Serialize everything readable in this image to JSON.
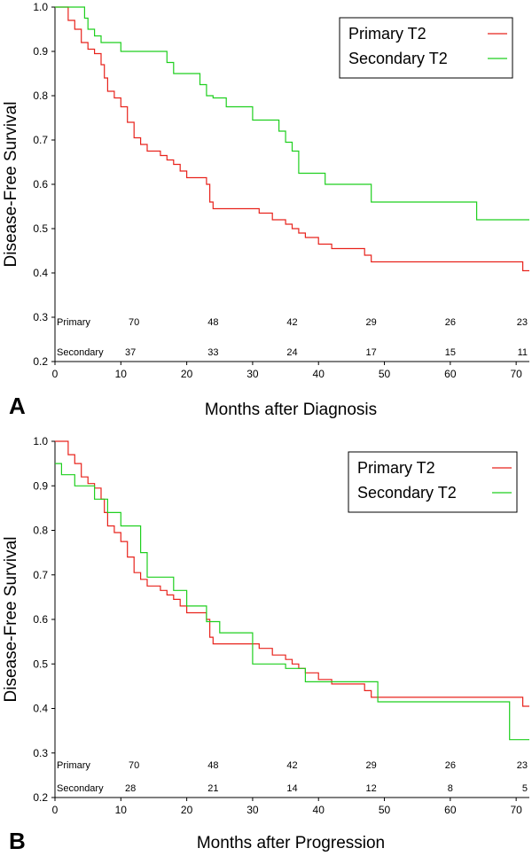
{
  "colors": {
    "primary": "#e8231c",
    "secondary": "#1fcf1f"
  },
  "chart_data": [
    {
      "type": "line",
      "step": true,
      "panel_label": "A",
      "xlabel": "Months after Diagnosis",
      "ylabel": "Disease-Free Survival",
      "xlim": [
        0,
        72
      ],
      "ylim": [
        0.2,
        1.0
      ],
      "xticks": [
        "0",
        "10",
        "20",
        "30",
        "40",
        "50",
        "60",
        "70"
      ],
      "yticks": [
        "0.2",
        "0.3",
        "0.4",
        "0.5",
        "0.6",
        "0.7",
        "0.8",
        "0.9",
        "1.0"
      ],
      "legend": {
        "position": "top-right",
        "entries": [
          "Primary T2",
          "Secondary T2"
        ]
      },
      "series": [
        {
          "name": "Primary T2",
          "color_key": "primary",
          "x": [
            0,
            2,
            3,
            4,
            5,
            6,
            7,
            7.5,
            8,
            9,
            10,
            11,
            12,
            13,
            14,
            16,
            17,
            18,
            19,
            20,
            23,
            23.5,
            24,
            31,
            33,
            35,
            36,
            37,
            38,
            40,
            42,
            47,
            48,
            57,
            71,
            72
          ],
          "y": [
            1.0,
            0.97,
            0.95,
            0.92,
            0.905,
            0.895,
            0.87,
            0.84,
            0.81,
            0.795,
            0.775,
            0.74,
            0.705,
            0.69,
            0.675,
            0.665,
            0.655,
            0.645,
            0.63,
            0.615,
            0.6,
            0.56,
            0.545,
            0.535,
            0.52,
            0.51,
            0.5,
            0.49,
            0.48,
            0.465,
            0.455,
            0.44,
            0.425,
            0.425,
            0.405,
            0.405
          ]
        },
        {
          "name": "Secondary T2",
          "color_key": "secondary",
          "x": [
            0,
            4.5,
            5,
            6,
            7,
            10,
            17,
            18,
            22,
            23,
            24,
            26,
            30,
            34,
            35,
            36,
            37,
            41,
            48,
            64,
            72
          ],
          "y": [
            1.0,
            0.975,
            0.95,
            0.935,
            0.92,
            0.9,
            0.875,
            0.85,
            0.825,
            0.8,
            0.795,
            0.775,
            0.745,
            0.72,
            0.695,
            0.675,
            0.625,
            0.6,
            0.56,
            0.52,
            0.52
          ]
        }
      ],
      "risk_table": {
        "rows": [
          {
            "label": "Primary",
            "values": [
              "70",
              "48",
              "42",
              "29",
              "26",
              "23"
            ]
          },
          {
            "label": "Secondary",
            "values": [
              "37",
              "33",
              "24",
              "17",
              "15",
              "11"
            ]
          }
        ],
        "at_months": [
          12,
          24,
          36,
          48,
          60,
          72
        ]
      }
    },
    {
      "type": "line",
      "step": true,
      "panel_label": "B",
      "xlabel": "Months after Progression",
      "ylabel": "Disease-Free Survival",
      "xlim": [
        0,
        72
      ],
      "ylim": [
        0.2,
        1.0
      ],
      "xticks": [
        "0",
        "10",
        "20",
        "30",
        "40",
        "50",
        "60",
        "70"
      ],
      "yticks": [
        "0.2",
        "0.3",
        "0.4",
        "0.5",
        "0.6",
        "0.7",
        "0.8",
        "0.9",
        "1.0"
      ],
      "legend": {
        "position": "top-right",
        "entries": [
          "Primary T2",
          "Secondary T2"
        ]
      },
      "series": [
        {
          "name": "Primary T2",
          "color_key": "primary",
          "x": [
            0,
            2,
            3,
            4,
            5,
            6,
            7,
            7.5,
            8,
            9,
            10,
            11,
            12,
            13,
            14,
            16,
            17,
            18,
            19,
            20,
            23,
            23.5,
            24,
            31,
            33,
            35,
            36,
            37,
            38,
            40,
            42,
            47,
            48,
            57,
            71,
            72
          ],
          "y": [
            1.0,
            0.97,
            0.95,
            0.92,
            0.905,
            0.895,
            0.87,
            0.84,
            0.81,
            0.795,
            0.775,
            0.74,
            0.705,
            0.69,
            0.675,
            0.665,
            0.655,
            0.645,
            0.63,
            0.615,
            0.6,
            0.56,
            0.545,
            0.535,
            0.52,
            0.51,
            0.5,
            0.49,
            0.48,
            0.465,
            0.455,
            0.44,
            0.425,
            0.425,
            0.405,
            0.405
          ]
        },
        {
          "name": "Secondary T2",
          "color_key": "secondary",
          "x": [
            0,
            1,
            3,
            6,
            8,
            10,
            13,
            14,
            18,
            20,
            23,
            25,
            30,
            35,
            38,
            42,
            49,
            69,
            72
          ],
          "y": [
            0.95,
            0.925,
            0.9,
            0.87,
            0.84,
            0.81,
            0.75,
            0.695,
            0.665,
            0.63,
            0.595,
            0.57,
            0.5,
            0.49,
            0.46,
            0.46,
            0.415,
            0.33,
            0.33
          ]
        }
      ],
      "risk_table": {
        "rows": [
          {
            "label": "Primary",
            "values": [
              "70",
              "48",
              "42",
              "29",
              "26",
              "23"
            ]
          },
          {
            "label": "Secondary",
            "values": [
              "28",
              "21",
              "14",
              "12",
              "8",
              "5"
            ]
          }
        ],
        "at_months": [
          12,
          24,
          36,
          48,
          60,
          72
        ]
      }
    }
  ]
}
